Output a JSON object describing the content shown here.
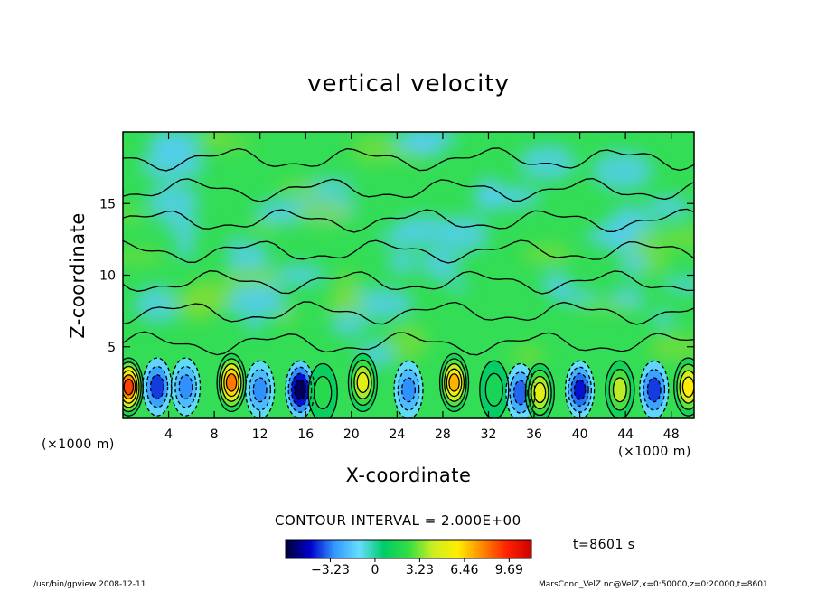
{
  "chart_data": {
    "type": "heatmap",
    "title": "vertical velocity",
    "xlabel": "X-coordinate",
    "ylabel": "Z-coordinate",
    "x_unit": "(×1000 m)",
    "xlim": [
      0,
      50
    ],
    "ylim": [
      0,
      20
    ],
    "x_ticks": [
      4,
      8,
      12,
      16,
      20,
      24,
      28,
      32,
      36,
      40,
      44,
      48
    ],
    "y_ticks": [
      5,
      10,
      15
    ],
    "contour_interval": "CONTOUR INTERVAL = 2.000E+00",
    "colorbar": {
      "ticks": [
        -3.23,
        0,
        3.23,
        6.46,
        9.69
      ],
      "tick_labels": [
        "−3.23",
        "0",
        "3.23",
        "6.46",
        "9.69"
      ],
      "range": [
        -6.46,
        11.3
      ],
      "colors": [
        "#000033",
        "#0000cc",
        "#3399ff",
        "#66ddff",
        "#00cc66",
        "#33dd44",
        "#ccee22",
        "#ffee00",
        "#ff8800",
        "#ff2200",
        "#cc0000"
      ]
    },
    "cells": [
      {
        "x": 0.5,
        "z": 2.2,
        "value": 9.0
      },
      {
        "x": 3.0,
        "z": 2.2,
        "value": -4.0
      },
      {
        "x": 5.5,
        "z": 2.2,
        "value": -3.0
      },
      {
        "x": 9.5,
        "z": 2.5,
        "value": 8.0
      },
      {
        "x": 12.0,
        "z": 2.0,
        "value": -3.0
      },
      {
        "x": 15.5,
        "z": 2.0,
        "value": -6.0
      },
      {
        "x": 17.5,
        "z": 1.8,
        "value": 2.0
      },
      {
        "x": 21.0,
        "z": 2.5,
        "value": 5.0
      },
      {
        "x": 25.0,
        "z": 2.0,
        "value": -3.0
      },
      {
        "x": 29.0,
        "z": 2.5,
        "value": 7.0
      },
      {
        "x": 32.5,
        "z": 2.0,
        "value": 1.5
      },
      {
        "x": 34.8,
        "z": 1.8,
        "value": -3.5
      },
      {
        "x": 36.5,
        "z": 1.8,
        "value": 5.0
      },
      {
        "x": 40.0,
        "z": 2.0,
        "value": -4.5
      },
      {
        "x": 43.5,
        "z": 2.0,
        "value": 4.0
      },
      {
        "x": 46.5,
        "z": 2.0,
        "value": -4.0
      },
      {
        "x": 49.5,
        "z": 2.2,
        "value": 6.0
      }
    ]
  },
  "time_label": "t=8601 s",
  "footer": {
    "left": "/usr/bin/gpview   2008-12-11",
    "right": "MarsCond_VelZ.nc@VelZ,x=0:50000,z=0:20000,t=8601"
  }
}
